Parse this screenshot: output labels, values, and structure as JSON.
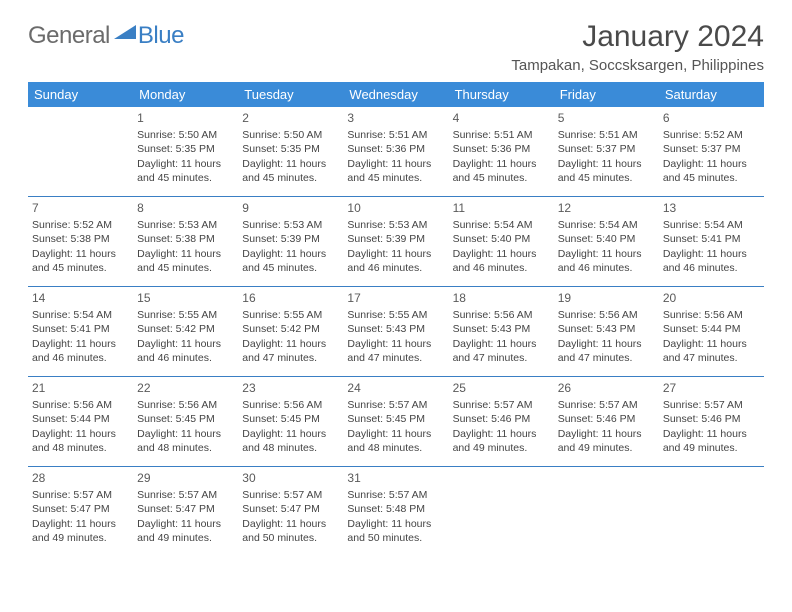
{
  "logo": {
    "general": "General",
    "blue": "Blue"
  },
  "title": "January 2024",
  "location": "Tampakan, Soccsksargen, Philippines",
  "dayHeaders": [
    "Sunday",
    "Monday",
    "Tuesday",
    "Wednesday",
    "Thursday",
    "Friday",
    "Saturday"
  ],
  "colors": {
    "headerBg": "#3a8bd8",
    "headerText": "#ffffff",
    "border": "#3a7fc4",
    "logoGray": "#6b6b6b",
    "logoBlue": "#3a7fc4",
    "text": "#444444",
    "background": "#ffffff"
  },
  "labels": {
    "sunrise": "Sunrise:",
    "sunset": "Sunset:",
    "daylight": "Daylight:"
  },
  "weeks": [
    [
      null,
      {
        "d": "1",
        "sr": "5:50 AM",
        "ss": "5:35 PM",
        "dl": "11 hours and 45 minutes."
      },
      {
        "d": "2",
        "sr": "5:50 AM",
        "ss": "5:35 PM",
        "dl": "11 hours and 45 minutes."
      },
      {
        "d": "3",
        "sr": "5:51 AM",
        "ss": "5:36 PM",
        "dl": "11 hours and 45 minutes."
      },
      {
        "d": "4",
        "sr": "5:51 AM",
        "ss": "5:36 PM",
        "dl": "11 hours and 45 minutes."
      },
      {
        "d": "5",
        "sr": "5:51 AM",
        "ss": "5:37 PM",
        "dl": "11 hours and 45 minutes."
      },
      {
        "d": "6",
        "sr": "5:52 AM",
        "ss": "5:37 PM",
        "dl": "11 hours and 45 minutes."
      }
    ],
    [
      {
        "d": "7",
        "sr": "5:52 AM",
        "ss": "5:38 PM",
        "dl": "11 hours and 45 minutes."
      },
      {
        "d": "8",
        "sr": "5:53 AM",
        "ss": "5:38 PM",
        "dl": "11 hours and 45 minutes."
      },
      {
        "d": "9",
        "sr": "5:53 AM",
        "ss": "5:39 PM",
        "dl": "11 hours and 45 minutes."
      },
      {
        "d": "10",
        "sr": "5:53 AM",
        "ss": "5:39 PM",
        "dl": "11 hours and 46 minutes."
      },
      {
        "d": "11",
        "sr": "5:54 AM",
        "ss": "5:40 PM",
        "dl": "11 hours and 46 minutes."
      },
      {
        "d": "12",
        "sr": "5:54 AM",
        "ss": "5:40 PM",
        "dl": "11 hours and 46 minutes."
      },
      {
        "d": "13",
        "sr": "5:54 AM",
        "ss": "5:41 PM",
        "dl": "11 hours and 46 minutes."
      }
    ],
    [
      {
        "d": "14",
        "sr": "5:54 AM",
        "ss": "5:41 PM",
        "dl": "11 hours and 46 minutes."
      },
      {
        "d": "15",
        "sr": "5:55 AM",
        "ss": "5:42 PM",
        "dl": "11 hours and 46 minutes."
      },
      {
        "d": "16",
        "sr": "5:55 AM",
        "ss": "5:42 PM",
        "dl": "11 hours and 47 minutes."
      },
      {
        "d": "17",
        "sr": "5:55 AM",
        "ss": "5:43 PM",
        "dl": "11 hours and 47 minutes."
      },
      {
        "d": "18",
        "sr": "5:56 AM",
        "ss": "5:43 PM",
        "dl": "11 hours and 47 minutes."
      },
      {
        "d": "19",
        "sr": "5:56 AM",
        "ss": "5:43 PM",
        "dl": "11 hours and 47 minutes."
      },
      {
        "d": "20",
        "sr": "5:56 AM",
        "ss": "5:44 PM",
        "dl": "11 hours and 47 minutes."
      }
    ],
    [
      {
        "d": "21",
        "sr": "5:56 AM",
        "ss": "5:44 PM",
        "dl": "11 hours and 48 minutes."
      },
      {
        "d": "22",
        "sr": "5:56 AM",
        "ss": "5:45 PM",
        "dl": "11 hours and 48 minutes."
      },
      {
        "d": "23",
        "sr": "5:56 AM",
        "ss": "5:45 PM",
        "dl": "11 hours and 48 minutes."
      },
      {
        "d": "24",
        "sr": "5:57 AM",
        "ss": "5:45 PM",
        "dl": "11 hours and 48 minutes."
      },
      {
        "d": "25",
        "sr": "5:57 AM",
        "ss": "5:46 PM",
        "dl": "11 hours and 49 minutes."
      },
      {
        "d": "26",
        "sr": "5:57 AM",
        "ss": "5:46 PM",
        "dl": "11 hours and 49 minutes."
      },
      {
        "d": "27",
        "sr": "5:57 AM",
        "ss": "5:46 PM",
        "dl": "11 hours and 49 minutes."
      }
    ],
    [
      {
        "d": "28",
        "sr": "5:57 AM",
        "ss": "5:47 PM",
        "dl": "11 hours and 49 minutes."
      },
      {
        "d": "29",
        "sr": "5:57 AM",
        "ss": "5:47 PM",
        "dl": "11 hours and 49 minutes."
      },
      {
        "d": "30",
        "sr": "5:57 AM",
        "ss": "5:47 PM",
        "dl": "11 hours and 50 minutes."
      },
      {
        "d": "31",
        "sr": "5:57 AM",
        "ss": "5:48 PM",
        "dl": "11 hours and 50 minutes."
      },
      null,
      null,
      null
    ]
  ]
}
